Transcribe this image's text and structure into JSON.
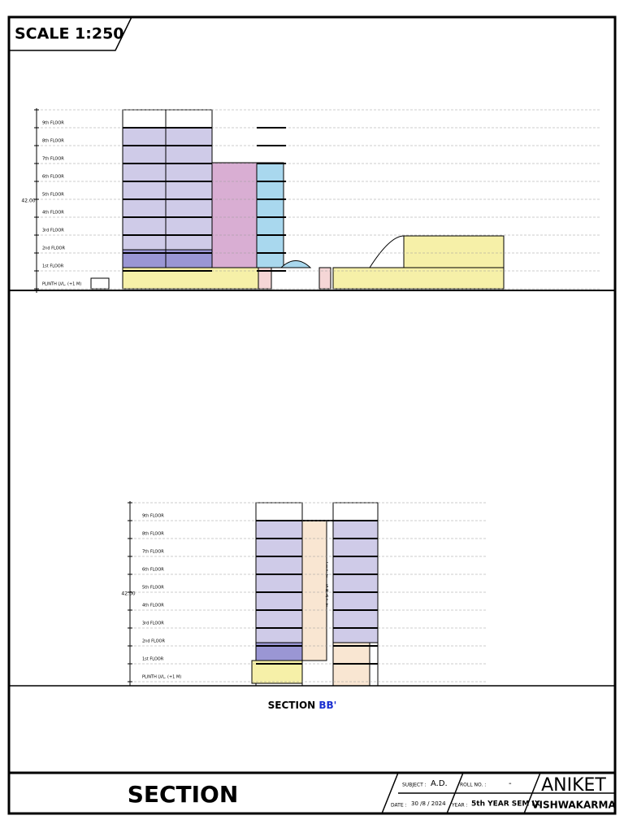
{
  "scale": "SCALE 1:250",
  "section_a": {
    "height": "42.00",
    "floors": [
      "9th FLOOR",
      "8th FLOOR",
      "7th FLOOR",
      "6th FLOOR",
      "5th FLOOR",
      "4th FLOOR",
      "3rd FLOOR",
      "2nd FLOOR",
      "1st FLOOR",
      "PLINTH LVL. (+1 M)"
    ]
  },
  "section_b": {
    "height": "42.00",
    "floors": [
      "9th FLOOR",
      "8th FLOOR",
      "7th FLOOR",
      "6th FLOOR",
      "5th FLOOR",
      "4th FLOOR",
      "3rd FLOOR",
      "2nd FLOOR",
      "1st FLOOR",
      "PLINTH LVL. (+1 M)"
    ],
    "lift_label": "LIFT SHAFT",
    "caption": {
      "prefix": "SECTION",
      "suffix": "BB'"
    }
  },
  "title_block": {
    "title": "SECTION",
    "subject_label": "SUBJECT :",
    "subject": "A.D.",
    "roll_label": "ROLL NO. :",
    "roll": "-",
    "date_label": "DATE :",
    "date": "30 /8 / 2024",
    "year_label": "YEAR :",
    "year": "5th YEAR SEM IX",
    "author_first": "ANIKET",
    "author_last": "VISHWAKARMA"
  }
}
